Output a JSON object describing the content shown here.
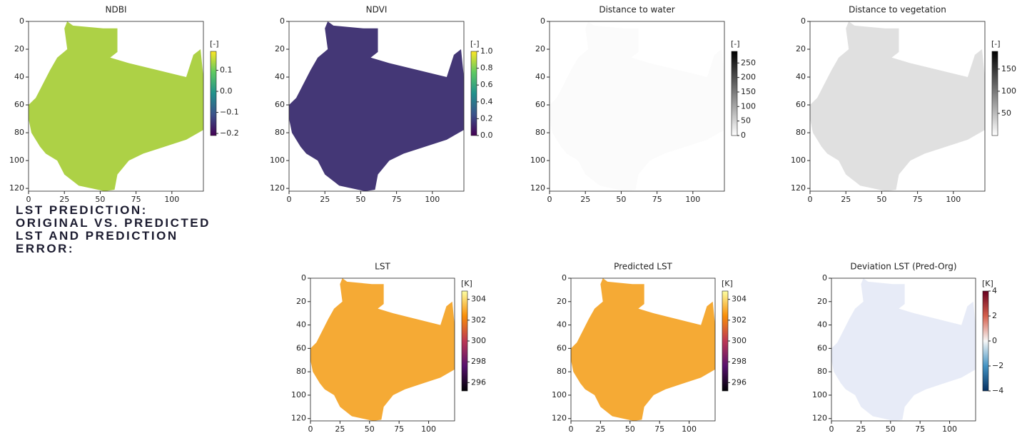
{
  "caption": [
    "LST PREDICTION:",
    "ORIGINAL VS. PREDICTED",
    "LST AND PREDICTION",
    "ERROR:"
  ],
  "chart_data": [
    {
      "type": "heatmap",
      "title": "NDBI",
      "xlim": [
        0,
        122
      ],
      "ylim": [
        122,
        0
      ],
      "xticks": [
        0,
        25,
        50,
        75,
        100
      ],
      "yticks": [
        0,
        20,
        40,
        60,
        80,
        100,
        120
      ],
      "map_color": "#a9cf3c",
      "colorbar": {
        "label": "[-]",
        "clim": [
          -0.21,
          0.19
        ],
        "ticks": [
          {
            "value": -0.2,
            "label": "−0.2"
          },
          {
            "value": -0.1,
            "label": "−0.1"
          },
          {
            "value": 0,
            "label": "0.0"
          },
          0.1
        ],
        "cmap": [
          "#440154",
          "#3b528b",
          "#21918c",
          "#5ec962",
          "#fde725"
        ]
      }
    },
    {
      "type": "heatmap",
      "title": "NDVI",
      "xlim": [
        0,
        122
      ],
      "ylim": [
        122,
        0
      ],
      "xticks": [
        0,
        25,
        50,
        75,
        100
      ],
      "yticks": [
        0,
        20,
        40,
        60,
        80,
        100,
        120
      ],
      "map_color": "#3a2c6f",
      "colorbar": {
        "label": "[-]",
        "clim": [
          0,
          1
        ],
        "ticks": [
          {
            "value": 0,
            "label": "0.0"
          },
          0.2,
          0.4,
          0.6,
          0.8,
          {
            "value": 1,
            "label": "1.0"
          }
        ],
        "cmap": [
          "#440154",
          "#3b528b",
          "#21918c",
          "#5ec962",
          "#fde725"
        ]
      }
    },
    {
      "type": "heatmap",
      "title": "Distance to water",
      "xlim": [
        0,
        122
      ],
      "ylim": [
        122,
        0
      ],
      "xticks": [
        0,
        25,
        50,
        75,
        100
      ],
      "yticks": [
        0,
        20,
        40,
        60,
        80,
        100,
        120
      ],
      "map_color": "#fbfbfb",
      "colorbar": {
        "label": "[-]",
        "clim": [
          0,
          290
        ],
        "ticks": [
          0,
          50,
          100,
          150,
          200,
          250
        ],
        "cmap": [
          "#ffffff",
          "#000000"
        ]
      }
    },
    {
      "type": "heatmap",
      "title": "Distance to vegetation",
      "xlim": [
        0,
        122
      ],
      "ylim": [
        122,
        0
      ],
      "xticks": [
        0,
        25,
        50,
        75,
        100
      ],
      "yticks": [
        0,
        20,
        40,
        60,
        80,
        100,
        120
      ],
      "map_color": "#dedede",
      "colorbar": {
        "label": "[-]",
        "clim": [
          0,
          190
        ],
        "ticks": [
          50,
          100,
          150
        ],
        "cmap": [
          "#ffffff",
          "#000000"
        ]
      }
    },
    {
      "type": "heatmap",
      "title": "LST",
      "xlim": [
        0,
        122
      ],
      "ylim": [
        122,
        0
      ],
      "xticks": [
        0,
        25,
        50,
        75,
        100
      ],
      "yticks": [
        0,
        20,
        40,
        60,
        80,
        100,
        120
      ],
      "map_color": "#f4a52a",
      "colorbar": {
        "label": "[K]",
        "clim": [
          295.2,
          304.8
        ],
        "ticks": [
          296,
          298,
          300,
          302,
          304
        ],
        "cmap": [
          "#000004",
          "#57106e",
          "#bc3754",
          "#f98e09",
          "#fcffa4"
        ]
      }
    },
    {
      "type": "heatmap",
      "title": "Predicted LST",
      "xlim": [
        0,
        122
      ],
      "ylim": [
        122,
        0
      ],
      "xticks": [
        0,
        25,
        50,
        75,
        100
      ],
      "yticks": [
        0,
        20,
        40,
        60,
        80,
        100,
        120
      ],
      "map_color": "#f4a52a",
      "colorbar": {
        "label": "[K]",
        "clim": [
          295.2,
          304.8
        ],
        "ticks": [
          296,
          298,
          300,
          302,
          304
        ],
        "cmap": [
          "#000004",
          "#57106e",
          "#bc3754",
          "#f98e09",
          "#fcffa4"
        ]
      }
    },
    {
      "type": "heatmap",
      "title": "Deviation LST (Pred-Org)",
      "xlim": [
        0,
        122
      ],
      "ylim": [
        122,
        0
      ],
      "xticks": [
        0,
        25,
        50,
        75,
        100
      ],
      "yticks": [
        0,
        20,
        40,
        60,
        80,
        100,
        120
      ],
      "map_color": "#e6eaf7",
      "colorbar": {
        "label": "[K]",
        "clim": [
          -4,
          4
        ],
        "ticks": [
          {
            "value": -4,
            "label": "−4"
          },
          {
            "value": -2,
            "label": "−2"
          },
          0,
          2,
          4
        ],
        "cmap": [
          "#053061",
          "#4393c3",
          "#f7f7f7",
          "#d6604d",
          "#67001f"
        ]
      }
    }
  ]
}
